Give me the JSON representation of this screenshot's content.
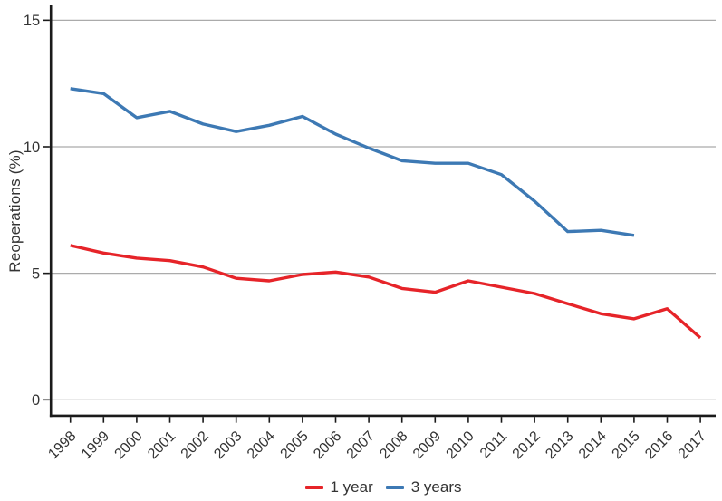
{
  "figure": {
    "y_axis_title": "Reoperations (%)",
    "x_axis_title": "",
    "title": ""
  },
  "legend": {
    "items": [
      {
        "label": "1 year",
        "color": "#e62429"
      },
      {
        "label": "3 years",
        "color": "#3d79b4"
      }
    ]
  },
  "chart_data": {
    "type": "line",
    "title": "",
    "xlabel": "",
    "ylabel": "Reoperations (%)",
    "x": [
      1998,
      1999,
      2000,
      2001,
      2002,
      2003,
      2004,
      2005,
      2006,
      2007,
      2008,
      2009,
      2010,
      2011,
      2012,
      2013,
      2014,
      2015,
      2016,
      2017
    ],
    "series": [
      {
        "name": "1 year",
        "color": "#e62429",
        "values": [
          6.1,
          5.8,
          5.6,
          5.5,
          5.25,
          4.8,
          4.7,
          4.95,
          5.05,
          4.85,
          4.4,
          4.25,
          4.7,
          4.45,
          4.2,
          3.8,
          3.4,
          3.2,
          3.6,
          2.45
        ]
      },
      {
        "name": "3 years",
        "color": "#3d79b4",
        "values": [
          12.3,
          12.1,
          11.15,
          11.4,
          10.9,
          10.6,
          10.85,
          11.2,
          10.5,
          9.95,
          9.45,
          9.35,
          9.35,
          8.9,
          7.85,
          6.65,
          6.7,
          6.5,
          null,
          null
        ]
      }
    ],
    "ylim": [
      0,
      15
    ],
    "yticks": [
      0,
      5,
      10,
      15
    ],
    "grid": "horizontal-only",
    "x_tick_rotation_deg": 45,
    "legend_position": "bottom-center"
  },
  "style": {
    "grid_color": "#ababab",
    "axis_color": "#1a1a1a",
    "tick_label_color": "#333333",
    "background": "#ffffff"
  }
}
